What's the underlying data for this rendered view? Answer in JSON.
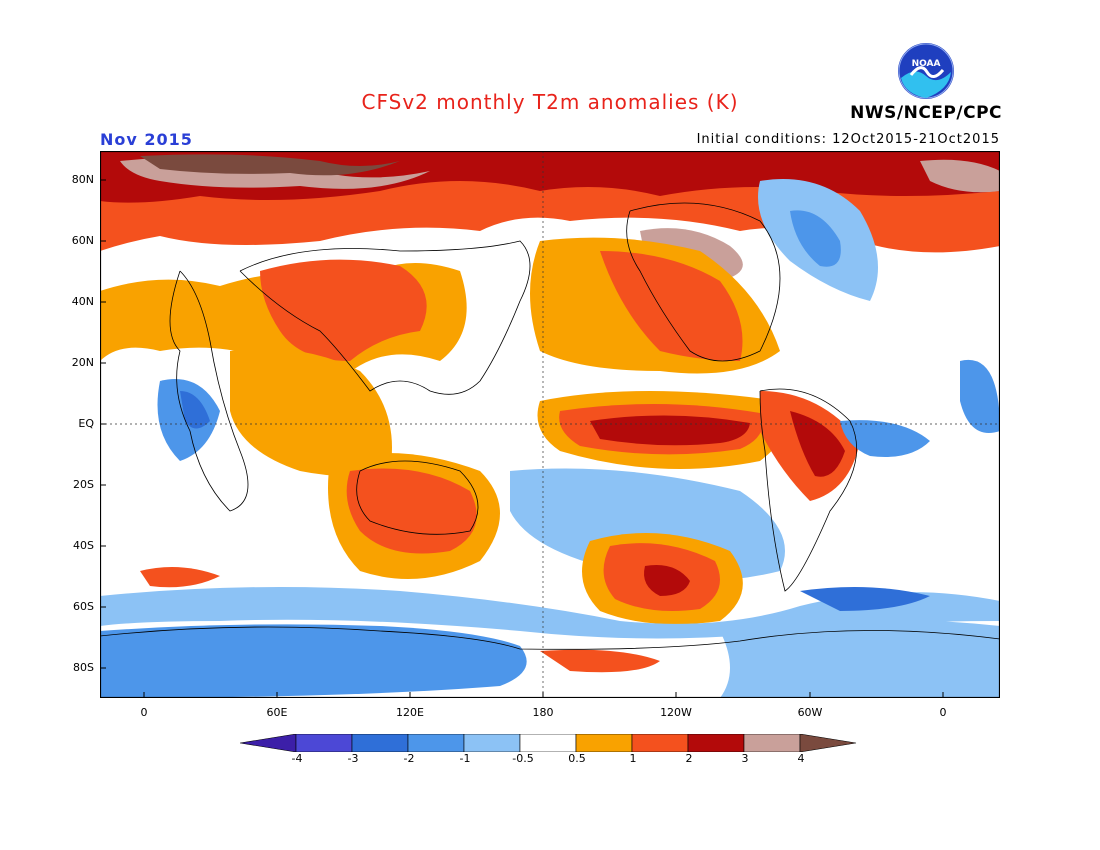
{
  "title": "CFSv2 monthly T2m anomalies (K)",
  "period": "Nov 2015",
  "initial_conditions": "Initial conditions: 12Oct2015-21Oct2015",
  "agency": "NWS/NCEP/CPC",
  "logo_text": "NOAA",
  "y_axis": {
    "labels": [
      "80N",
      "60N",
      "40N",
      "20N",
      "EQ",
      "20S",
      "40S",
      "60S",
      "80S"
    ]
  },
  "x_axis": {
    "labels": [
      "0",
      "60E",
      "120E",
      "180",
      "120W",
      "60W",
      "0"
    ]
  },
  "colorbar": {
    "labels": [
      "-4",
      "-3",
      "-2",
      "-1",
      "-0.5",
      "0.5",
      "1",
      "2",
      "3",
      "4"
    ],
    "colors": [
      "#3c1fa8",
      "#4c48d6",
      "#2f6fd8",
      "#4d96ea",
      "#8cc2f5",
      "#ffffff",
      "#f9a200",
      "#f4511e",
      "#b30a0a",
      "#c9a09a",
      "#7a4a3e"
    ]
  }
}
